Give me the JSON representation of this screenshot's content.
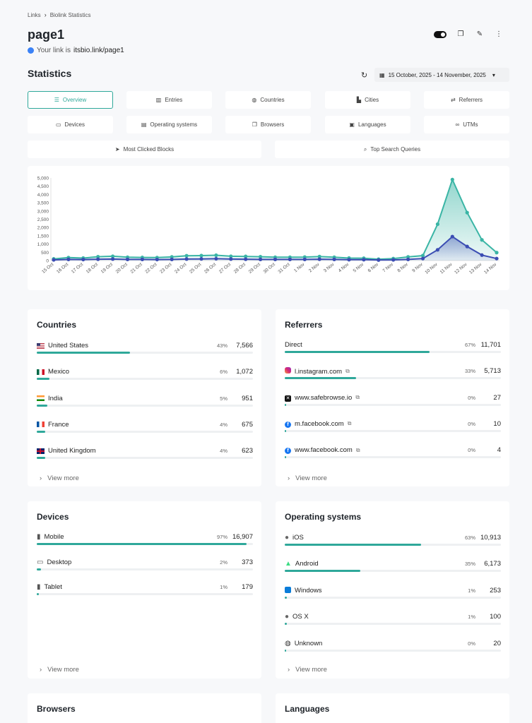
{
  "breadcrumb": {
    "root": "Links",
    "current": "Biolink Statistics"
  },
  "page": {
    "title": "page1",
    "link_prefix": "Your link is",
    "link": "itsbio.link/page1"
  },
  "stats": {
    "title": "Statistics",
    "date_range": "15 October, 2025 - 14 November, 2025"
  },
  "tabs": [
    {
      "label": "Overview",
      "icon": "list-icon"
    },
    {
      "label": "Entries",
      "icon": "bar-chart-icon"
    },
    {
      "label": "Countries",
      "icon": "globe-icon"
    },
    {
      "label": "Cities",
      "icon": "city-icon"
    },
    {
      "label": "Referrers",
      "icon": "shuffle-icon"
    },
    {
      "label": "Devices",
      "icon": "laptop-icon"
    },
    {
      "label": "Operating systems",
      "icon": "server-icon"
    },
    {
      "label": "Browsers",
      "icon": "window-icon"
    },
    {
      "label": "Languages",
      "icon": "language-icon"
    },
    {
      "label": "UTMs",
      "icon": "link-icon"
    },
    {
      "label": "Most Clicked Blocks",
      "icon": "pointer-icon"
    },
    {
      "label": "Top Search Queries",
      "icon": "search-icon"
    }
  ],
  "chart_data": {
    "type": "area",
    "x": [
      "15 Oct",
      "16 Oct",
      "17 Oct",
      "18 Oct",
      "19 Oct",
      "20 Oct",
      "21 Oct",
      "22 Oct",
      "23 Oct",
      "24 Oct",
      "25 Oct",
      "26 Oct",
      "27 Oct",
      "28 Oct",
      "29 Oct",
      "30 Oct",
      "31 Oct",
      "1 Nov",
      "2 Nov",
      "3 Nov",
      "4 Nov",
      "5 Nov",
      "6 Nov",
      "7 Nov",
      "8 Nov",
      "9 Nov",
      "10 Nov",
      "11 Nov",
      "12 Nov",
      "13 Nov",
      "14 Nov"
    ],
    "yticks": [
      "0",
      "500",
      "1,000",
      "1,500",
      "2,000",
      "2,500",
      "3,000",
      "3,500",
      "4,000",
      "4,500",
      "5,000"
    ],
    "ylim": [
      0,
      5000
    ],
    "series": [
      {
        "color": "#3ab5a5",
        "values": [
          100,
          180,
          150,
          230,
          260,
          200,
          190,
          180,
          220,
          290,
          300,
          320,
          260,
          250,
          230,
          200,
          200,
          210,
          240,
          200,
          150,
          140,
          80,
          120,
          220,
          300,
          2200,
          4900,
          2900,
          1250,
          480
        ]
      },
      {
        "color": "#3b4db3",
        "values": [
          40,
          70,
          60,
          80,
          90,
          70,
          70,
          60,
          70,
          90,
          100,
          110,
          90,
          80,
          70,
          70,
          70,
          70,
          80,
          70,
          50,
          50,
          30,
          40,
          70,
          120,
          650,
          1450,
          850,
          330,
          120
        ]
      }
    ]
  },
  "countries": {
    "title": "Countries",
    "rows": [
      {
        "label": "United States",
        "pct": "43%",
        "value": "7,566",
        "frac": 0.43,
        "flag": "us"
      },
      {
        "label": "Mexico",
        "pct": "6%",
        "value": "1,072",
        "frac": 0.06,
        "flag": "mx"
      },
      {
        "label": "India",
        "pct": "5%",
        "value": "951",
        "frac": 0.05,
        "flag": "in"
      },
      {
        "label": "France",
        "pct": "4%",
        "value": "675",
        "frac": 0.04,
        "flag": "fr"
      },
      {
        "label": "United Kingdom",
        "pct": "4%",
        "value": "623",
        "frac": 0.04,
        "flag": "gb"
      }
    ],
    "view_more": "View more"
  },
  "referrers": {
    "title": "Referrers",
    "rows": [
      {
        "label": "Direct",
        "pct": "67%",
        "value": "11,701",
        "frac": 0.67,
        "icon": ""
      },
      {
        "label": "l.instagram.com",
        "pct": "33%",
        "value": "5,713",
        "frac": 0.33,
        "icon": "instagram-icon"
      },
      {
        "label": "www.safebrowse.io",
        "pct": "0%",
        "value": "27",
        "frac": 0.003,
        "icon": "x-icon"
      },
      {
        "label": "m.facebook.com",
        "pct": "0%",
        "value": "10",
        "frac": 0.002,
        "icon": "facebook-icon"
      },
      {
        "label": "www.facebook.com",
        "pct": "0%",
        "value": "4",
        "frac": 0.001,
        "icon": "facebook-icon"
      }
    ],
    "view_more": "View more"
  },
  "devices": {
    "title": "Devices",
    "rows": [
      {
        "label": "Mobile",
        "pct": "97%",
        "value": "16,907",
        "frac": 0.97,
        "icon": "mobile-icon"
      },
      {
        "label": "Desktop",
        "pct": "2%",
        "value": "373",
        "frac": 0.02,
        "icon": "desktop-icon"
      },
      {
        "label": "Tablet",
        "pct": "1%",
        "value": "179",
        "frac": 0.01,
        "icon": "tablet-icon"
      }
    ],
    "view_more": "View more"
  },
  "os": {
    "title": "Operating systems",
    "rows": [
      {
        "label": "iOS",
        "pct": "63%",
        "value": "10,913",
        "frac": 0.63,
        "icon": "apple-icon"
      },
      {
        "label": "Android",
        "pct": "35%",
        "value": "6,173",
        "frac": 0.35,
        "icon": "android-icon"
      },
      {
        "label": "Windows",
        "pct": "1%",
        "value": "253",
        "frac": 0.01,
        "icon": "windows-icon"
      },
      {
        "label": "OS X",
        "pct": "1%",
        "value": "100",
        "frac": 0.01,
        "icon": "apple-icon"
      },
      {
        "label": "Unknown",
        "pct": "0%",
        "value": "20",
        "frac": 0.002,
        "icon": "globe-icon"
      }
    ],
    "view_more": "View more"
  },
  "browsers": {
    "title": "Browsers"
  },
  "languages": {
    "title": "Languages"
  }
}
